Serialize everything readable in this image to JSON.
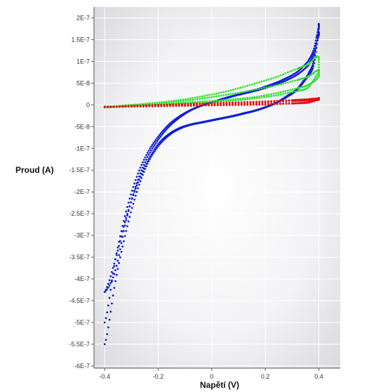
{
  "chart_data": {
    "type": "scatter",
    "title": "",
    "xlabel": "Napětí (V)",
    "ylabel": "Proud (A)",
    "xlim": [
      -0.44,
      0.48
    ],
    "ylim": [
      -6.05e-07,
      2.25e-07
    ],
    "x_ticks": [
      {
        "value": -0.4,
        "label": "-0.4"
      },
      {
        "value": -0.2,
        "label": "-0.2"
      },
      {
        "value": 0,
        "label": "0"
      },
      {
        "value": 0.2,
        "label": "0.2"
      },
      {
        "value": 0.4,
        "label": "0.4"
      }
    ],
    "y_ticks": [
      {
        "value": 2e-07,
        "label": "2E-7"
      },
      {
        "value": 1.5e-07,
        "label": "1.5E-7"
      },
      {
        "value": 1e-07,
        "label": "1E-7"
      },
      {
        "value": 5e-08,
        "label": "5E-8"
      },
      {
        "value": 0,
        "label": "0"
      },
      {
        "value": -5e-08,
        "label": "-5E-8"
      },
      {
        "value": -1e-07,
        "label": "-1E-7"
      },
      {
        "value": -1.5e-07,
        "label": "-1.5E-7"
      },
      {
        "value": -2e-07,
        "label": "-2E-7"
      },
      {
        "value": -2.5e-07,
        "label": "-2.5E-7"
      },
      {
        "value": -3e-07,
        "label": "-3E-7"
      },
      {
        "value": -3.5e-07,
        "label": "-3.5E-7"
      },
      {
        "value": -4e-07,
        "label": "-4E-7"
      },
      {
        "value": -4.5e-07,
        "label": "-4.5E-7"
      },
      {
        "value": -5e-07,
        "label": "-5E-7"
      },
      {
        "value": -5.5e-07,
        "label": "-5.5E-7"
      },
      {
        "value": -6e-07,
        "label": "-6E-7"
      }
    ],
    "grid": true,
    "legend": "none",
    "colors": {
      "blue": "#1020d0",
      "green": "#30e030",
      "red": "#e01010",
      "background_light": "#ffffff",
      "background_dark": "#d9d9dd",
      "grid": "#ffffff",
      "axis": "#555555"
    },
    "series": [
      {
        "color": "blue",
        "cycles": [
          {
            "x": [
              -0.4,
              -0.36,
              -0.32,
              -0.28,
              -0.24,
              -0.2,
              -0.16,
              -0.12,
              -0.08,
              -0.04,
              0,
              0.04,
              0.08,
              0.12,
              0.16,
              0.2,
              0.24,
              0.28,
              0.32,
              0.36,
              0.38,
              0.4,
              0.4,
              0.38,
              0.36,
              0.32,
              0.28,
              0.24,
              0.2,
              0.16,
              0.12,
              0.08,
              0.04,
              0,
              -0.04,
              -0.08,
              -0.12,
              -0.16,
              -0.2,
              -0.24,
              -0.28,
              -0.32,
              -0.36,
              -0.4
            ],
            "y": [
              -5.5e-07,
              -4.05e-07,
              -2.9e-07,
              -2e-07,
              -1.35e-07,
              -9.5e-08,
              -7e-08,
              -5.5e-08,
              -4.6e-08,
              -4.1e-08,
              -3.6e-08,
              -3.1e-08,
              -2.6e-08,
              -2e-08,
              -1.4e-08,
              -6e-09,
              4e-09,
              1.8e-08,
              3.5e-08,
              6.5e-08,
              9e-08,
              1.6e-07,
              1.6e-07,
              1.15e-07,
              9e-08,
              7e-08,
              5.7e-08,
              4.7e-08,
              3.9e-08,
              3.2e-08,
              2.6e-08,
              2e-08,
              1.3e-08,
              6e-09,
              -2e-09,
              -1.2e-08,
              -2.6e-08,
              -4.5e-08,
              -7.3e-08,
              -1.1e-07,
              -1.65e-07,
              -2.45e-07,
              -3.55e-07,
              -5e-07
            ]
          },
          {
            "x": [
              -0.4,
              -0.36,
              -0.32,
              -0.28,
              -0.24,
              -0.2,
              -0.16,
              -0.12,
              -0.08,
              -0.04,
              0,
              0.04,
              0.08,
              0.12,
              0.16,
              0.2,
              0.24,
              0.28,
              0.32,
              0.36,
              0.38,
              0.4,
              0.4,
              0.38,
              0.36,
              0.32,
              0.28,
              0.24,
              0.2,
              0.16,
              0.12,
              0.08,
              0.04,
              0,
              -0.04,
              -0.08,
              -0.12,
              -0.16,
              -0.2,
              -0.24,
              -0.28,
              -0.32,
              -0.36,
              -0.4
            ],
            "y": [
              -4.3e-07,
              -3.55e-07,
              -2.6e-07,
              -1.85e-07,
              -1.3e-07,
              -9e-08,
              -6.7e-08,
              -5.3e-08,
              -4.5e-08,
              -4e-08,
              -3.5e-08,
              -3e-08,
              -2.5e-08,
              -1.9e-08,
              -1.3e-08,
              -5e-09,
              5e-09,
              2e-08,
              3.8e-08,
              7e-08,
              1e-07,
              1.8e-07,
              1.75e-07,
              1.25e-07,
              1e-07,
              7.6e-08,
              6.2e-08,
              5.1e-08,
              4.2e-08,
              3.4e-08,
              2.7e-08,
              2.1e-08,
              1.4e-08,
              6e-09,
              -2e-09,
              -1.3e-08,
              -2.9e-08,
              -5e-08,
              -8e-08,
              -1.2e-07,
              -1.8e-07,
              -2.65e-07,
              -3.8e-07,
              -4.3e-07
            ]
          }
        ]
      },
      {
        "color": "green",
        "cycles": [
          {
            "x": [
              -0.4,
              -0.32,
              -0.24,
              -0.16,
              -0.08,
              0,
              0.08,
              0.16,
              0.24,
              0.32,
              0.36,
              0.4,
              0.4,
              0.36,
              0.32,
              0.24,
              0.16,
              0.08,
              0,
              -0.08,
              -0.16,
              -0.24,
              -0.32,
              -0.4
            ],
            "y": [
              -5e-09,
              -2e-09,
              1e-09,
              3e-09,
              6e-09,
              9e-09,
              1.3e-08,
              1.8e-08,
              2.7e-08,
              3.8e-08,
              4.6e-08,
              6.5e-08,
              1.1e-07,
              9.3e-08,
              8.3e-08,
              6.4e-08,
              4.9e-08,
              3.5e-08,
              2.4e-08,
              1.5e-08,
              8e-09,
              3e-09,
              -1e-09,
              -5e-09
            ]
          },
          {
            "x": [
              -0.4,
              -0.32,
              -0.24,
              -0.16,
              -0.08,
              0,
              0.08,
              0.16,
              0.24,
              0.32,
              0.36,
              0.4,
              0.4,
              0.36,
              0.32,
              0.24,
              0.16,
              0.08,
              0,
              -0.08,
              -0.16,
              -0.24,
              -0.32,
              -0.4
            ],
            "y": [
              -6e-09,
              -3e-09,
              0,
              2e-09,
              4e-09,
              7e-09,
              1e-08,
              1.5e-08,
              2.2e-08,
              3.2e-08,
              4e-08,
              7.3e-08,
              8e-08,
              6.5e-08,
              5.7e-08,
              4.5e-08,
              3.5e-08,
              2.6e-08,
              1.8e-08,
              1.1e-08,
              6e-09,
              2e-09,
              -2e-09,
              -6e-09
            ]
          }
        ]
      },
      {
        "color": "red",
        "cycles": [
          {
            "x": [
              -0.4,
              -0.3,
              -0.2,
              -0.1,
              0,
              0.1,
              0.2,
              0.3,
              0.36,
              0.4,
              0.4,
              0.36,
              0.3,
              0.2,
              0.1,
              0,
              -0.1,
              -0.2,
              -0.3,
              -0.4
            ],
            "y": [
              -4e-09,
              -3e-09,
              -2e-09,
              -1e-09,
              0,
              1e-09,
              2e-09,
              4e-09,
              6e-09,
              1.5e-08,
              1.5e-08,
              1.3e-08,
              1.1e-08,
              8e-09,
              6e-09,
              4e-09,
              2e-09,
              0,
              -2e-09,
              -4e-09
            ]
          },
          {
            "x": [
              -0.4,
              -0.3,
              -0.2,
              -0.1,
              0,
              0.1,
              0.2,
              0.3,
              0.36,
              0.4,
              0.4,
              0.36,
              0.3,
              0.2,
              0.1,
              0,
              -0.1,
              -0.2,
              -0.3,
              -0.4
            ],
            "y": [
              -5e-09,
              -4e-09,
              -3e-09,
              -2e-09,
              -1e-09,
              0,
              1e-09,
              3e-09,
              5e-09,
              1.2e-08,
              1.2e-08,
              1e-08,
              9e-09,
              6e-09,
              4e-09,
              2e-09,
              1e-09,
              -1e-09,
              -3e-09,
              -5e-09
            ]
          }
        ]
      }
    ]
  }
}
